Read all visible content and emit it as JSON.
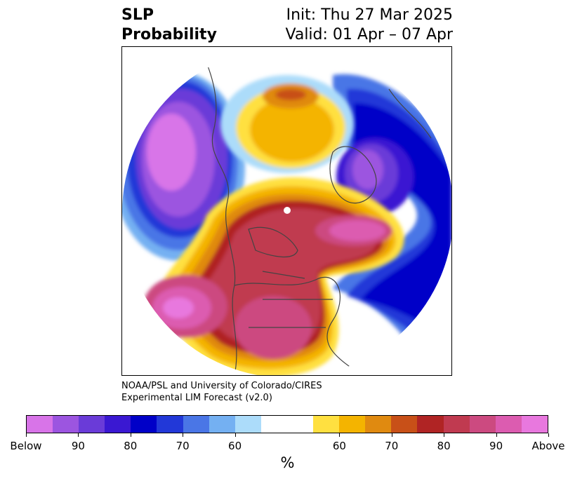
{
  "header": {
    "title_line1": "SLP",
    "title_line2": "Probability",
    "init_text": "Init: Thu 27 Mar 2025",
    "valid_text": "Valid: 01 Apr – 07 Apr"
  },
  "credit": {
    "line1": "NOAA/PSL and University of Colorado/CIRES",
    "line2": "Experimental LIM Forecast (v2.0)"
  },
  "colorbar": {
    "unit": "%",
    "labels": [
      "Below",
      "90",
      "80",
      "70",
      "60",
      "60",
      "70",
      "80",
      "90",
      "Above"
    ],
    "colors": [
      "#d874e8",
      "#9c55e0",
      "#6a3bd8",
      "#3a18d2",
      "#0000c8",
      "#2238d8",
      "#4a76e6",
      "#74b0f2",
      "#acdcfa",
      "#ffffff",
      "#ffe040",
      "#f4b400",
      "#e08a10",
      "#c85018",
      "#b02424",
      "#c03a50",
      "#cc4a80",
      "#dc5cb0",
      "#e878de"
    ]
  },
  "map_colors": {
    "below_90": "#d874e8",
    "below_85": "#9c55e0",
    "below_80": "#6a3bd8",
    "below_75": "#3a18d2",
    "below_70": "#0000c8",
    "below_65": "#2238d8",
    "below_60": "#4a76e6",
    "below_55": "#74b0f2",
    "below_50": "#acdcfa",
    "neutral": "#ffffff",
    "above_50": "#ffe040",
    "above_55": "#f4b400",
    "above_60": "#e08a10",
    "above_65": "#c85018",
    "above_70": "#b02424",
    "above_75": "#c03a50",
    "above_80": "#cc4a80",
    "above_85": "#dc5cb0",
    "above_90": "#e878de",
    "coastline": "#444444"
  }
}
